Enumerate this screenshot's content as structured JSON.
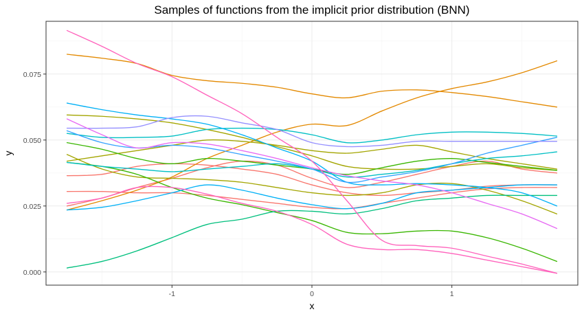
{
  "chart_data": {
    "type": "line",
    "title": "Samples of functions from the implicit prior distribution (BNN)",
    "xlabel": "x",
    "ylabel": "y",
    "xlim": [
      -1.9,
      1.9
    ],
    "ylim": [
      -0.005,
      0.095
    ],
    "xticks": [
      -1,
      0,
      1
    ],
    "xtick_labels": [
      "-1",
      "0",
      "1"
    ],
    "yticks": [
      0.0,
      0.025,
      0.05,
      0.075
    ],
    "ytick_labels": [
      "0.000",
      "0.025",
      "0.050",
      "0.075"
    ],
    "grid": true,
    "legend": "none",
    "x": [
      -1.75,
      -1.5,
      -1.25,
      -1.0,
      -0.75,
      -0.5,
      -0.25,
      0.0,
      0.25,
      0.5,
      0.75,
      1.0,
      1.25,
      1.5,
      1.75
    ],
    "series": [
      {
        "color": "#F8766D",
        "values": [
          0.025,
          0.028,
          0.032,
          0.0355,
          0.0395,
          0.042,
          0.0405,
          0.0355,
          0.032,
          0.034,
          0.037,
          0.04,
          0.042,
          0.039,
          0.0375
        ]
      },
      {
        "color": "#F8766D",
        "values": [
          0.0365,
          0.037,
          0.04,
          0.041,
          0.0405,
          0.039,
          0.037,
          0.033,
          0.03,
          0.029,
          0.03,
          0.031,
          0.0325,
          0.033,
          0.033
        ]
      },
      {
        "color": "#F8766D",
        "values": [
          0.0305,
          0.0305,
          0.03,
          0.03,
          0.029,
          0.0275,
          0.026,
          0.0245,
          0.024,
          0.026,
          0.028,
          0.03,
          0.0315,
          0.032,
          0.032
        ]
      },
      {
        "color": "#E38900",
        "values": [
          0.0825,
          0.081,
          0.079,
          0.0745,
          0.0725,
          0.0715,
          0.07,
          0.0675,
          0.066,
          0.0685,
          0.069,
          0.068,
          0.0665,
          0.0645,
          0.0625
        ]
      },
      {
        "color": "#E38900",
        "values": [
          0.0235,
          0.027,
          0.031,
          0.036,
          0.043,
          0.048,
          0.053,
          0.056,
          0.0555,
          0.061,
          0.066,
          0.0695,
          0.072,
          0.0755,
          0.08
        ]
      },
      {
        "color": "#A3A500",
        "values": [
          0.0595,
          0.059,
          0.058,
          0.0565,
          0.054,
          0.051,
          0.0475,
          0.044,
          0.04,
          0.039,
          0.039,
          0.04,
          0.041,
          0.0395,
          0.0385
        ]
      },
      {
        "color": "#A3A500",
        "values": [
          0.042,
          0.044,
          0.046,
          0.048,
          0.05,
          0.0495,
          0.048,
          0.046,
          0.045,
          0.0465,
          0.048,
          0.0455,
          0.043,
          0.041,
          0.039
        ]
      },
      {
        "color": "#A3A500",
        "values": [
          0.0445,
          0.039,
          0.036,
          0.0355,
          0.035,
          0.034,
          0.032,
          0.03,
          0.029,
          0.03,
          0.033,
          0.0335,
          0.031,
          0.027,
          0.022
        ]
      },
      {
        "color": "#39B600",
        "values": [
          0.049,
          0.0465,
          0.043,
          0.041,
          0.043,
          0.042,
          0.0405,
          0.039,
          0.037,
          0.0395,
          0.042,
          0.043,
          0.0415,
          0.04,
          0.0385
        ]
      },
      {
        "color": "#39B600",
        "values": [
          0.0415,
          0.04,
          0.037,
          0.032,
          0.028,
          0.0255,
          0.0225,
          0.0195,
          0.015,
          0.0145,
          0.0155,
          0.0155,
          0.013,
          0.009,
          0.004
        ]
      },
      {
        "color": "#00BF7D",
        "values": [
          0.0015,
          0.004,
          0.008,
          0.013,
          0.018,
          0.02,
          0.023,
          0.023,
          0.022,
          0.024,
          0.027,
          0.028,
          0.029,
          0.029,
          0.029
        ]
      },
      {
        "color": "#00BFC4",
        "values": [
          0.0525,
          0.051,
          0.051,
          0.0515,
          0.054,
          0.0545,
          0.054,
          0.052,
          0.049,
          0.05,
          0.052,
          0.053,
          0.053,
          0.0525,
          0.0515
        ]
      },
      {
        "color": "#00BFC4",
        "values": [
          0.0415,
          0.04,
          0.039,
          0.038,
          0.039,
          0.04,
          0.041,
          0.039,
          0.036,
          0.037,
          0.0385,
          0.041,
          0.043,
          0.044,
          0.0455
        ]
      },
      {
        "color": "#00B0F6",
        "values": [
          0.064,
          0.0615,
          0.0595,
          0.058,
          0.056,
          0.052,
          0.047,
          0.042,
          0.034,
          0.033,
          0.0335,
          0.033,
          0.032,
          0.03,
          0.025
        ]
      },
      {
        "color": "#00B0F6",
        "values": [
          0.0235,
          0.0245,
          0.027,
          0.03,
          0.033,
          0.031,
          0.028,
          0.0255,
          0.024,
          0.026,
          0.03,
          0.031,
          0.032,
          0.033,
          0.033
        ]
      },
      {
        "color": "#35A2FF",
        "values": [
          0.0535,
          0.049,
          0.047,
          0.048,
          0.047,
          0.0445,
          0.042,
          0.039,
          0.034,
          0.036,
          0.038,
          0.041,
          0.045,
          0.048,
          0.051
        ]
      },
      {
        "color": "#9590FF",
        "values": [
          0.0545,
          0.0545,
          0.055,
          0.0585,
          0.059,
          0.0565,
          0.054,
          0.049,
          0.0475,
          0.048,
          0.0495,
          0.0495,
          0.0495,
          0.0495,
          0.0495
        ]
      },
      {
        "color": "#E76BF3",
        "values": [
          0.058,
          0.052,
          0.047,
          0.049,
          0.0485,
          0.046,
          0.043,
          0.0395,
          0.0365,
          0.0345,
          0.033,
          0.03,
          0.026,
          0.022,
          0.0165
        ]
      },
      {
        "color": "#FF62BC",
        "values": [
          0.0915,
          0.0855,
          0.079,
          0.074,
          0.067,
          0.06,
          0.051,
          0.042,
          0.027,
          0.012,
          0.01,
          0.009,
          0.006,
          0.003,
          -0.0005
        ]
      },
      {
        "color": "#FF62BC",
        "values": [
          0.026,
          0.028,
          0.032,
          0.032,
          0.0295,
          0.026,
          0.023,
          0.018,
          0.0105,
          0.0085,
          0.0085,
          0.007,
          0.0045,
          0.002,
          -0.0005
        ]
      }
    ]
  }
}
